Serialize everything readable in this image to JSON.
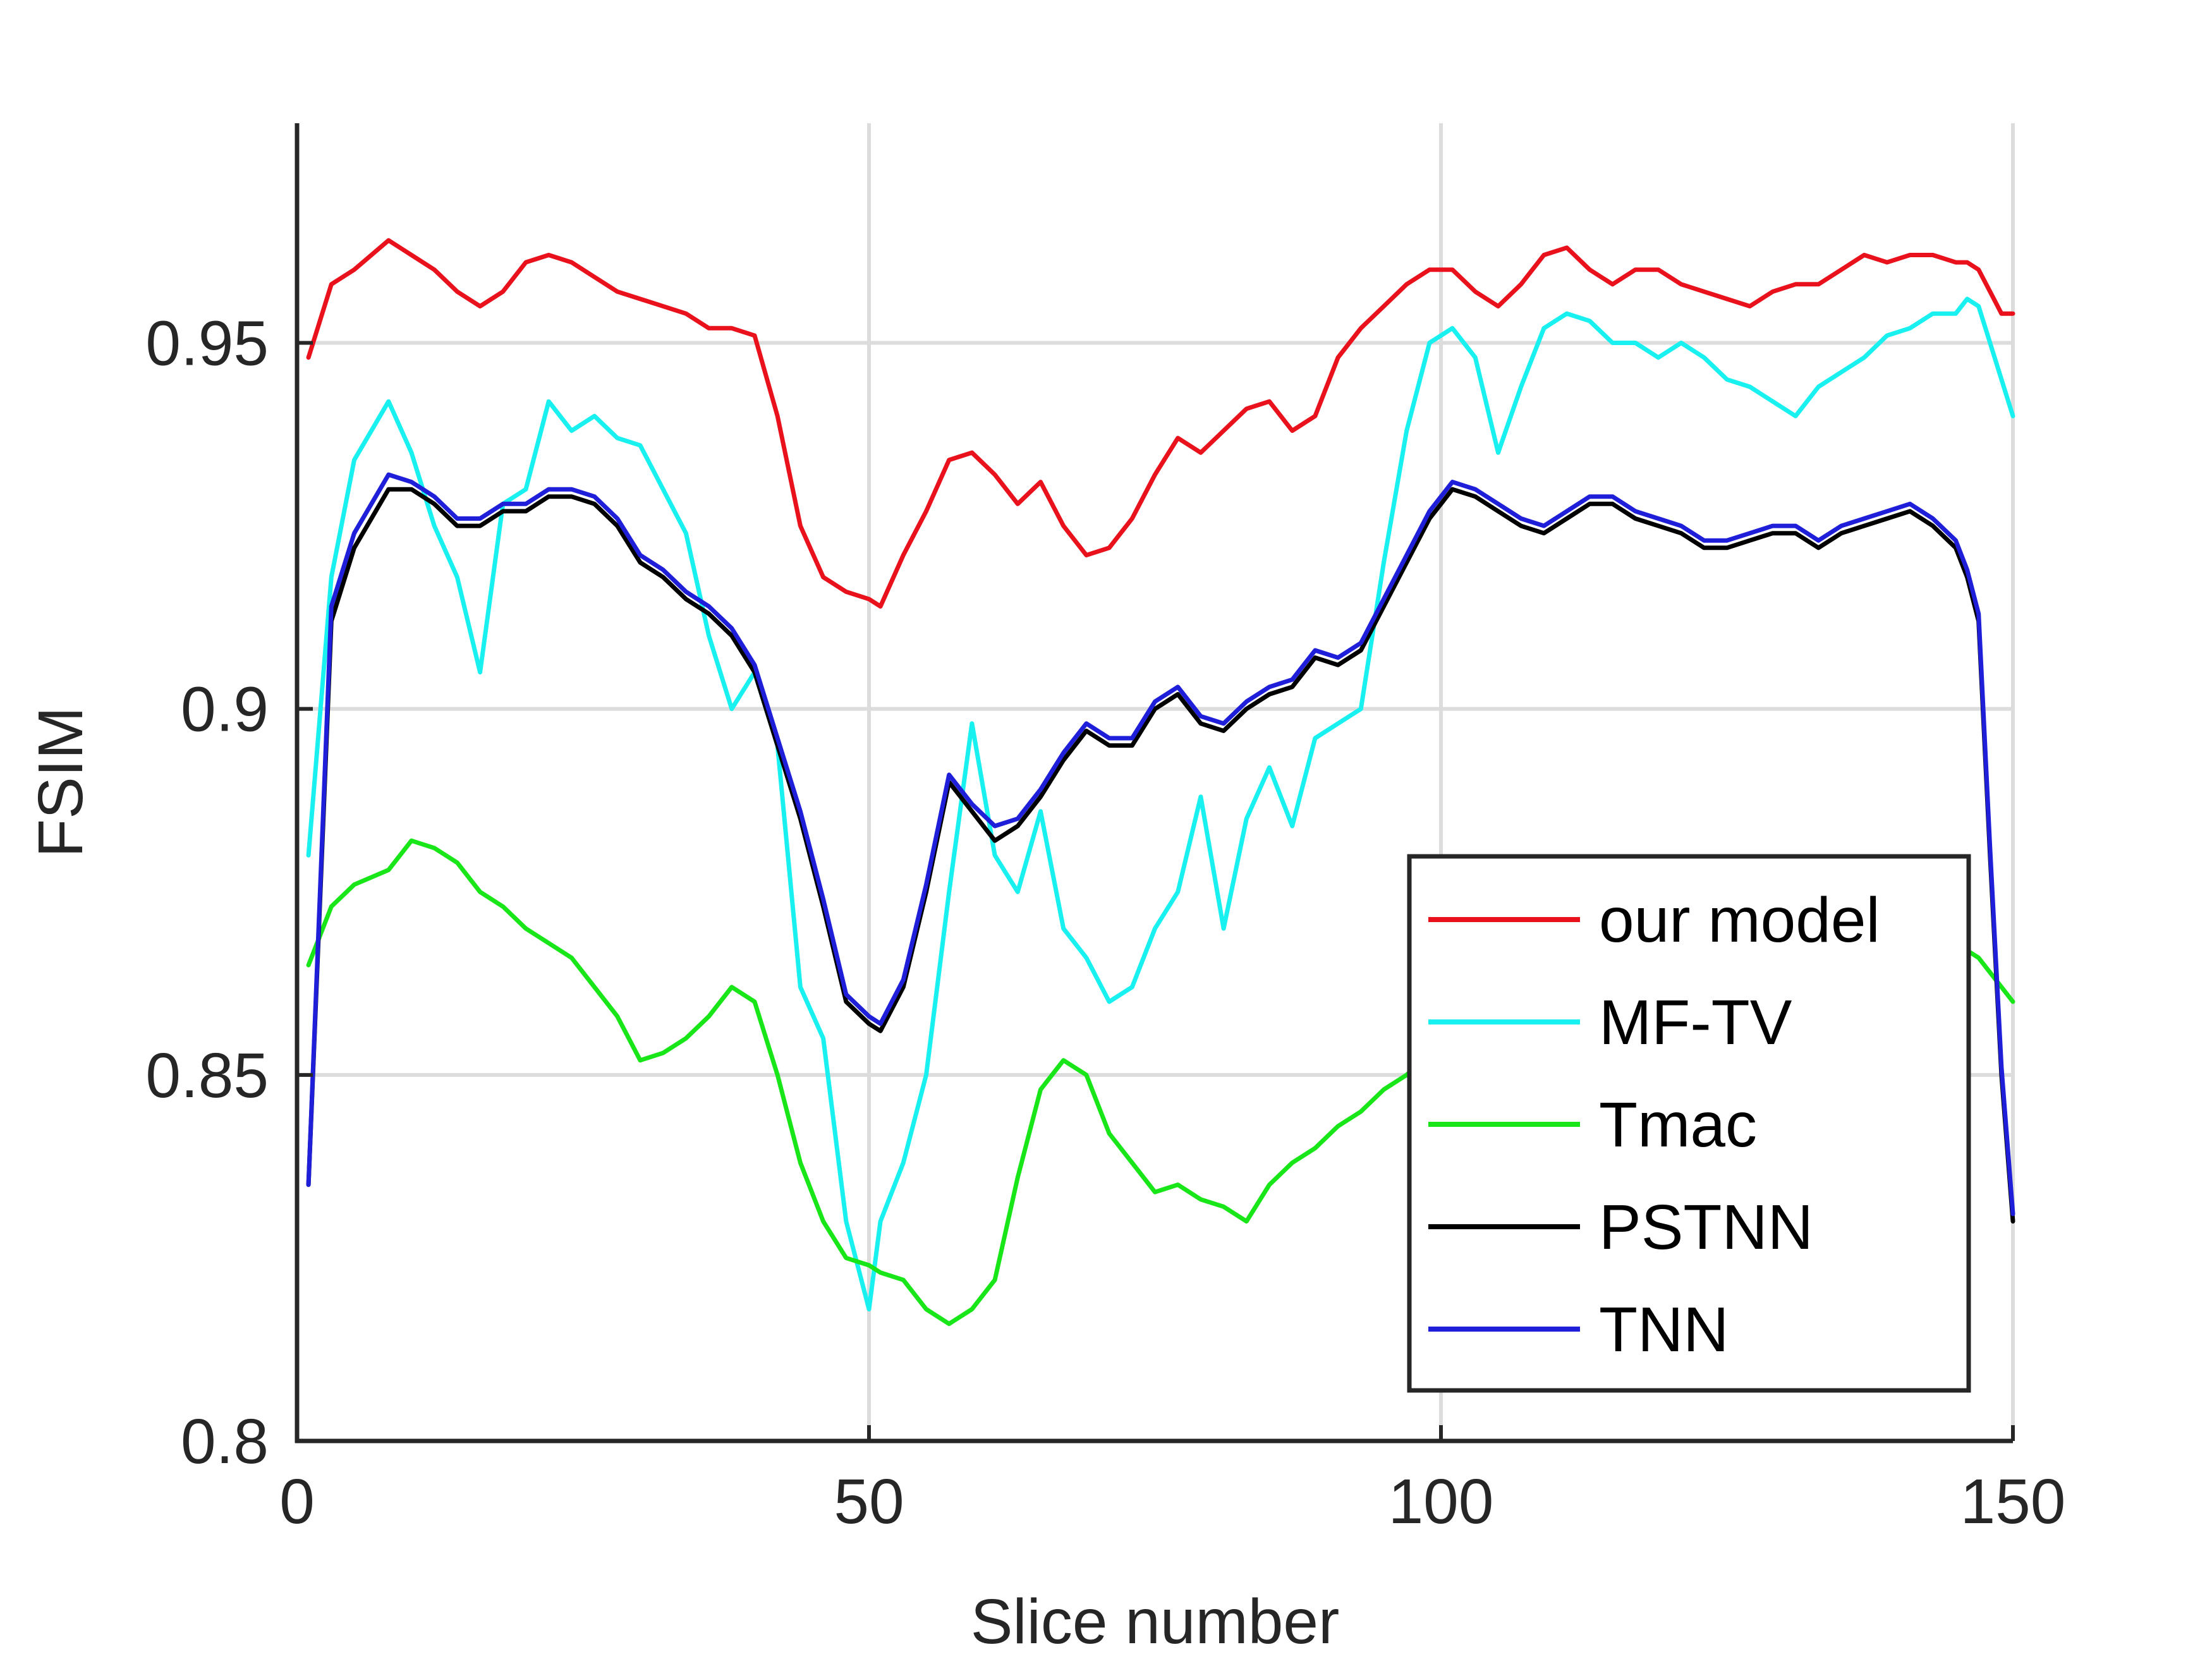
{
  "chart_data": {
    "type": "line",
    "title": "",
    "xlabel": "Slice number",
    "ylabel": "FSIM",
    "xlim": [
      0,
      150
    ],
    "ylim": [
      0.8,
      0.98
    ],
    "xticks": [
      0,
      50,
      100,
      150
    ],
    "xtick_labels": [
      "0",
      "50",
      "100",
      "150"
    ],
    "yticks": [
      0.8,
      0.85,
      0.9,
      0.95
    ],
    "ytick_labels": [
      "0.8",
      "0.85",
      "0.9",
      "0.95"
    ],
    "grid": true,
    "legend_position": "bottom-right",
    "x": [
      1,
      3,
      5,
      8,
      10,
      12,
      14,
      16,
      18,
      20,
      22,
      24,
      26,
      28,
      30,
      32,
      34,
      36,
      38,
      40,
      42,
      44,
      46,
      48,
      50,
      51,
      53,
      55,
      57,
      59,
      61,
      63,
      65,
      67,
      69,
      71,
      73,
      75,
      77,
      79,
      81,
      83,
      85,
      87,
      89,
      91,
      93,
      95,
      97,
      99,
      101,
      103,
      105,
      107,
      109,
      111,
      113,
      115,
      117,
      119,
      121,
      123,
      125,
      127,
      129,
      131,
      133,
      135,
      137,
      139,
      141,
      143,
      145,
      146,
      147,
      148,
      149,
      150
    ],
    "series": [
      {
        "name": "our model",
        "color": "#e8111c",
        "values": [
          0.948,
          0.958,
          0.96,
          0.964,
          0.962,
          0.96,
          0.957,
          0.955,
          0.957,
          0.961,
          0.962,
          0.961,
          0.959,
          0.957,
          0.956,
          0.955,
          0.954,
          0.952,
          0.952,
          0.951,
          0.94,
          0.925,
          0.918,
          0.916,
          0.915,
          0.914,
          0.921,
          0.927,
          0.934,
          0.935,
          0.932,
          0.928,
          0.931,
          0.925,
          0.921,
          0.922,
          0.926,
          0.932,
          0.937,
          0.935,
          0.938,
          0.941,
          0.942,
          0.938,
          0.94,
          0.948,
          0.952,
          0.955,
          0.958,
          0.96,
          0.96,
          0.957,
          0.955,
          0.958,
          0.962,
          0.963,
          0.96,
          0.958,
          0.96,
          0.96,
          0.958,
          0.957,
          0.956,
          0.955,
          0.957,
          0.958,
          0.958,
          0.96,
          0.962,
          0.961,
          0.962,
          0.962,
          0.961,
          0.961,
          0.96,
          0.957,
          0.954,
          0.954
        ]
      },
      {
        "name": "MF-TV",
        "color": "#19f0f0",
        "values": [
          0.88,
          0.918,
          0.934,
          0.942,
          0.935,
          0.925,
          0.918,
          0.905,
          0.928,
          0.93,
          0.942,
          0.938,
          0.94,
          0.937,
          0.936,
          0.93,
          0.924,
          0.91,
          0.9,
          0.905,
          0.895,
          0.862,
          0.855,
          0.83,
          0.818,
          0.83,
          0.838,
          0.85,
          0.875,
          0.898,
          0.88,
          0.875,
          0.886,
          0.87,
          0.866,
          0.86,
          0.862,
          0.87,
          0.875,
          0.888,
          0.87,
          0.885,
          0.892,
          0.884,
          0.896,
          0.898,
          0.9,
          0.92,
          0.938,
          0.95,
          0.952,
          0.948,
          0.935,
          0.944,
          0.952,
          0.954,
          0.953,
          0.95,
          0.95,
          0.948,
          0.95,
          0.948,
          0.945,
          0.944,
          0.942,
          0.94,
          0.944,
          0.946,
          0.948,
          0.951,
          0.952,
          0.954,
          0.954,
          0.956,
          0.955,
          0.95,
          0.945,
          0.94
        ]
      },
      {
        "name": "Tmac",
        "color": "#19e619",
        "values": [
          0.865,
          0.873,
          0.876,
          0.878,
          0.882,
          0.881,
          0.879,
          0.875,
          0.873,
          0.87,
          0.868,
          0.866,
          0.862,
          0.858,
          0.852,
          0.853,
          0.855,
          0.858,
          0.862,
          0.86,
          0.85,
          0.838,
          0.83,
          0.825,
          0.824,
          0.823,
          0.822,
          0.818,
          0.816,
          0.818,
          0.822,
          0.836,
          0.848,
          0.852,
          0.85,
          0.842,
          0.838,
          0.834,
          0.835,
          0.833,
          0.832,
          0.83,
          0.835,
          0.838,
          0.84,
          0.843,
          0.845,
          0.848,
          0.85,
          0.853,
          0.855,
          0.856,
          0.856,
          0.857,
          0.858,
          0.858,
          0.859,
          0.86,
          0.86,
          0.86,
          0.861,
          0.861,
          0.862,
          0.862,
          0.862,
          0.862,
          0.863,
          0.863,
          0.864,
          0.864,
          0.865,
          0.866,
          0.867,
          0.867,
          0.866,
          0.864,
          0.862,
          0.86
        ]
      },
      {
        "name": "PSTNN",
        "color": "#000000",
        "values": [
          0.835,
          0.912,
          0.922,
          0.93,
          0.93,
          0.928,
          0.925,
          0.925,
          0.927,
          0.927,
          0.929,
          0.929,
          0.928,
          0.925,
          0.92,
          0.918,
          0.915,
          0.913,
          0.91,
          0.905,
          0.895,
          0.885,
          0.873,
          0.86,
          0.857,
          0.856,
          0.862,
          0.875,
          0.89,
          0.886,
          0.882,
          0.884,
          0.888,
          0.893,
          0.897,
          0.895,
          0.895,
          0.9,
          0.902,
          0.898,
          0.897,
          0.9,
          0.902,
          0.903,
          0.907,
          0.906,
          0.908,
          0.914,
          0.92,
          0.926,
          0.93,
          0.929,
          0.927,
          0.925,
          0.924,
          0.926,
          0.928,
          0.928,
          0.926,
          0.925,
          0.924,
          0.922,
          0.922,
          0.923,
          0.924,
          0.924,
          0.922,
          0.924,
          0.925,
          0.926,
          0.927,
          0.925,
          0.922,
          0.918,
          0.912,
          0.88,
          0.85,
          0.83
        ]
      },
      {
        "name": "TNN",
        "color": "#1f1fd9",
        "values": [
          0.835,
          0.914,
          0.924,
          0.932,
          0.931,
          0.929,
          0.926,
          0.926,
          0.928,
          0.928,
          0.93,
          0.93,
          0.929,
          0.926,
          0.921,
          0.919,
          0.916,
          0.914,
          0.911,
          0.906,
          0.896,
          0.886,
          0.874,
          0.861,
          0.858,
          0.857,
          0.863,
          0.876,
          0.891,
          0.887,
          0.884,
          0.885,
          0.889,
          0.894,
          0.898,
          0.896,
          0.896,
          0.901,
          0.903,
          0.899,
          0.898,
          0.901,
          0.903,
          0.904,
          0.908,
          0.907,
          0.909,
          0.915,
          0.921,
          0.927,
          0.931,
          0.93,
          0.928,
          0.926,
          0.925,
          0.927,
          0.929,
          0.929,
          0.927,
          0.926,
          0.925,
          0.923,
          0.923,
          0.924,
          0.925,
          0.925,
          0.923,
          0.925,
          0.926,
          0.927,
          0.928,
          0.926,
          0.923,
          0.919,
          0.913,
          0.881,
          0.851,
          0.831
        ]
      }
    ]
  }
}
